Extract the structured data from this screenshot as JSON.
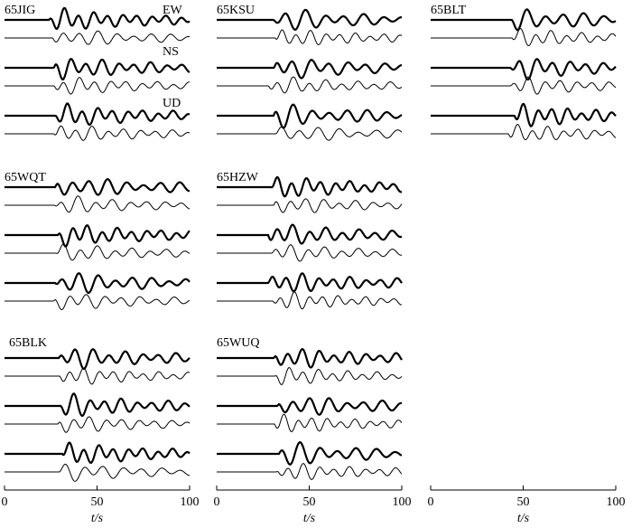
{
  "panels": [
    {
      "station": "65JIG",
      "components": [
        "EW",
        "NS",
        "UD"
      ]
    },
    {
      "station": "65WQT"
    },
    {
      "station": "65BLK"
    },
    {
      "station": "65KSU"
    },
    {
      "station": "65HZW"
    },
    {
      "station": "65WUQ"
    },
    {
      "station": "65BLT"
    }
  ],
  "axes": [
    {
      "xlim": [
        0,
        100
      ],
      "xticks": [
        0,
        50,
        100
      ],
      "xlabel": "t/s"
    },
    {
      "xlim": [
        0,
        100
      ],
      "xticks": [
        0,
        50,
        100
      ],
      "xlabel": "t/s"
    },
    {
      "xlim": [
        0,
        100
      ],
      "xticks": [
        0,
        50,
        100
      ],
      "xlabel": "t/s"
    }
  ]
}
